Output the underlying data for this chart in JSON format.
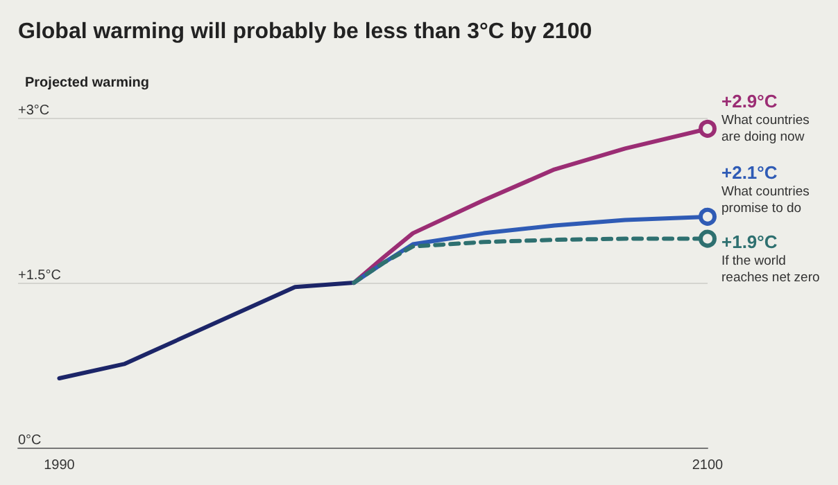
{
  "chart_data": {
    "type": "line",
    "title": "Global warming will probably be less than 3°C by 2100",
    "ylabel": "Projected warming",
    "xlim": [
      1983,
      2100
    ],
    "xticks": [
      1990,
      2100
    ],
    "ylim": [
      0,
      3
    ],
    "yticks": [
      {
        "value": 0,
        "label": "0°C"
      },
      {
        "value": 1.5,
        "label": "+1.5°C"
      },
      {
        "value": 3,
        "label": "+3°C"
      }
    ],
    "grid": "y",
    "line_style": "solid",
    "series": [
      {
        "color": "#1c2568",
        "x": [
          1990,
          2001,
          2030,
          2040
        ],
        "values": [
          0.63,
          0.76,
          1.46,
          1.5
        ]
      },
      {
        "name": "What countries are doing now",
        "color": "#9b2d74",
        "x": [
          2040,
          2045,
          2050,
          2062,
          2074,
          2086,
          2100
        ],
        "values": [
          1.5,
          1.73,
          1.95,
          2.25,
          2.53,
          2.72,
          2.9
        ],
        "value_labels": [
          null,
          null,
          null,
          null,
          null,
          null,
          "+2.9°C"
        ]
      },
      {
        "name": "What countries promise to do",
        "color": "#2f5bb5",
        "x": [
          2040,
          2045,
          2050,
          2062,
          2074,
          2086,
          2100
        ],
        "values": [
          1.5,
          1.68,
          1.85,
          1.95,
          2.02,
          2.07,
          2.1
        ],
        "value_labels": [
          null,
          null,
          null,
          null,
          null,
          null,
          "+2.1°C"
        ]
      },
      {
        "name": "If the world reaches net zero",
        "color": "#2e7070",
        "line_style": "dashed",
        "x": [
          2040,
          2045,
          2050,
          2062,
          2074,
          2086,
          2100
        ],
        "values": [
          1.5,
          1.68,
          1.83,
          1.87,
          1.89,
          1.9,
          1.9
        ],
        "value_labels": [
          null,
          null,
          null,
          null,
          null,
          null,
          "+1.9°C"
        ]
      }
    ]
  }
}
